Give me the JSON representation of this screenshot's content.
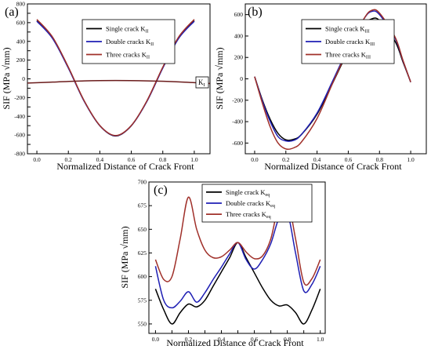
{
  "chart_data": [
    {
      "panel_label": "(a)",
      "type": "line",
      "ylabel": "SIF (MPa √mm)",
      "xlabel": "Normalized Distance of Crack Front",
      "xlim": [
        -0.06,
        1.1
      ],
      "ylim": [
        -800,
        800
      ],
      "x_ticks": [
        0.0,
        0.2,
        0.4,
        0.6,
        0.8,
        1.0
      ],
      "x_tick_labels": [
        "0.0",
        "0.2",
        "0.4",
        "0.6",
        "0.8",
        "1.0"
      ],
      "y_ticks": [
        -800,
        -700,
        -600,
        -500,
        -400,
        -300,
        -200,
        -100,
        0,
        100,
        200,
        300,
        400,
        500,
        600,
        700,
        800
      ],
      "y_tick_labels": [
        "-800",
        "",
        "-600",
        "",
        "-400",
        "",
        "-200",
        "",
        "0",
        "",
        "200",
        "",
        "400",
        "",
        "600",
        "",
        "800"
      ],
      "grid": false,
      "legend_position": "top-center",
      "annotation": "K_I",
      "series": [
        {
          "name": "Single crack K_II",
          "color": "#000000",
          "x": [
            0.0,
            0.1,
            0.2,
            0.3,
            0.4,
            0.5,
            0.6,
            0.7,
            0.8,
            0.9,
            1.0
          ],
          "y": [
            620,
            435,
            120,
            -235,
            -500,
            -610,
            -500,
            -235,
            120,
            435,
            620
          ]
        },
        {
          "name": "Double cracks K_II",
          "color": "#1f1fb4",
          "x": [
            0.0,
            0.1,
            0.2,
            0.3,
            0.4,
            0.5,
            0.6,
            0.7,
            0.8,
            0.9,
            1.0
          ],
          "y": [
            615,
            430,
            115,
            -238,
            -500,
            -608,
            -500,
            -238,
            115,
            430,
            615
          ]
        },
        {
          "name": "Three cracks K_II",
          "color": "#a0302a",
          "x": [
            0.0,
            0.1,
            0.2,
            0.3,
            0.4,
            0.5,
            0.6,
            0.7,
            0.8,
            0.9,
            1.0
          ],
          "y": [
            635,
            445,
            125,
            -232,
            -498,
            -605,
            -498,
            -232,
            125,
            445,
            635
          ]
        },
        {
          "name": "K_I",
          "color": "#6b1c1c",
          "x": [
            -0.06,
            0.1,
            0.3,
            0.5,
            0.7,
            0.9,
            1.1
          ],
          "y": [
            -45,
            -35,
            -22,
            -18,
            -22,
            -32,
            -50
          ]
        }
      ]
    },
    {
      "panel_label": "(b)",
      "type": "line",
      "ylabel": "SIF (MPa √mm)",
      "xlabel": "Normalized Distance of Crack Front",
      "xlim": [
        -0.06,
        1.1
      ],
      "ylim": [
        -700,
        700
      ],
      "x_ticks": [
        0.0,
        0.2,
        0.4,
        0.6,
        0.8,
        1.0
      ],
      "x_tick_labels": [
        "0.0",
        "0.2",
        "0.4",
        "0.6",
        "0.8",
        "1.0"
      ],
      "y_ticks": [
        -600,
        -400,
        -200,
        0,
        200,
        400,
        600
      ],
      "y_tick_labels": [
        "-600",
        "-400",
        "-200",
        "0",
        "200",
        "400",
        "600"
      ],
      "grid": false,
      "legend_position": "top-center",
      "series": [
        {
          "name": "Single crack K_III",
          "color": "#000000",
          "x": [
            0.0,
            0.05,
            0.1,
            0.15,
            0.2,
            0.25,
            0.3,
            0.4,
            0.5,
            0.6,
            0.7,
            0.75,
            0.8,
            0.9,
            0.95,
            1.0
          ],
          "y": [
            20,
            -200,
            -380,
            -510,
            -570,
            -565,
            -520,
            -330,
            -40,
            260,
            500,
            560,
            545,
            350,
            160,
            -30
          ]
        },
        {
          "name": "Double cracks K_III",
          "color": "#1f1fb4",
          "x": [
            0.0,
            0.05,
            0.1,
            0.15,
            0.2,
            0.25,
            0.3,
            0.4,
            0.5,
            0.6,
            0.7,
            0.75,
            0.8,
            0.9,
            0.95,
            1.0
          ],
          "y": [
            20,
            -210,
            -400,
            -540,
            -580,
            -575,
            -520,
            -320,
            -20,
            290,
            560,
            630,
            600,
            380,
            170,
            -30
          ]
        },
        {
          "name": "Three cracks K_III",
          "color": "#a0302a",
          "x": [
            0.0,
            0.05,
            0.1,
            0.15,
            0.2,
            0.25,
            0.3,
            0.4,
            0.5,
            0.6,
            0.7,
            0.75,
            0.8,
            0.9,
            0.95,
            1.0
          ],
          "y": [
            20,
            -230,
            -450,
            -600,
            -655,
            -645,
            -590,
            -370,
            -40,
            280,
            560,
            640,
            615,
            390,
            175,
            -30
          ]
        }
      ]
    },
    {
      "panel_label": "(c)",
      "type": "line",
      "ylabel": "SIF (MPa √mm)",
      "xlabel": "Normalized Distance of Crack Front",
      "xlim": [
        -0.04,
        1.03
      ],
      "ylim": [
        540,
        700
      ],
      "x_ticks": [
        0.0,
        0.1,
        0.2,
        0.3,
        0.4,
        0.5,
        0.6,
        0.7,
        0.8,
        0.9,
        1.0
      ],
      "x_tick_labels": [
        "0.0",
        "",
        "0.2",
        "",
        "0.4",
        "",
        "0.6",
        "",
        "0.8",
        "",
        "1.0"
      ],
      "y_ticks": [
        550,
        575,
        600,
        625,
        650,
        675,
        700
      ],
      "y_tick_labels": [
        "550",
        "575",
        "600",
        "625",
        "650",
        "675",
        "700"
      ],
      "grid": false,
      "legend_position": "top-center",
      "series": [
        {
          "name": "Single crack K_eq",
          "color": "#000000",
          "x": [
            0.0,
            0.05,
            0.1,
            0.15,
            0.2,
            0.25,
            0.3,
            0.35,
            0.4,
            0.45,
            0.5,
            0.55,
            0.6,
            0.65,
            0.7,
            0.75,
            0.8,
            0.85,
            0.9,
            0.95,
            1.0
          ],
          "y": [
            587,
            565,
            550,
            562,
            571,
            568,
            575,
            590,
            605,
            620,
            636,
            620,
            604,
            588,
            575,
            569,
            570,
            562,
            550,
            565,
            587
          ]
        },
        {
          "name": "Double cracks K_eq",
          "color": "#1f1fb4",
          "x": [
            0.0,
            0.05,
            0.1,
            0.15,
            0.2,
            0.25,
            0.3,
            0.35,
            0.4,
            0.45,
            0.5,
            0.55,
            0.6,
            0.65,
            0.7,
            0.75,
            0.8,
            0.85,
            0.9,
            0.95,
            1.0
          ],
          "y": [
            611,
            575,
            567,
            574,
            584,
            573,
            583,
            597,
            610,
            624,
            636,
            618,
            608,
            618,
            635,
            662,
            668,
            625,
            585,
            592,
            611
          ]
        },
        {
          "name": "Three cracks K_eq",
          "color": "#a0302a",
          "x": [
            0.0,
            0.05,
            0.1,
            0.15,
            0.2,
            0.25,
            0.3,
            0.35,
            0.4,
            0.45,
            0.5,
            0.55,
            0.6,
            0.65,
            0.7,
            0.75,
            0.8,
            0.85,
            0.9,
            0.95,
            1.0
          ],
          "y": [
            618,
            597,
            600,
            640,
            684,
            650,
            628,
            620,
            621,
            628,
            636,
            626,
            619,
            622,
            640,
            677,
            682,
            640,
            594,
            598,
            618
          ]
        }
      ]
    }
  ]
}
